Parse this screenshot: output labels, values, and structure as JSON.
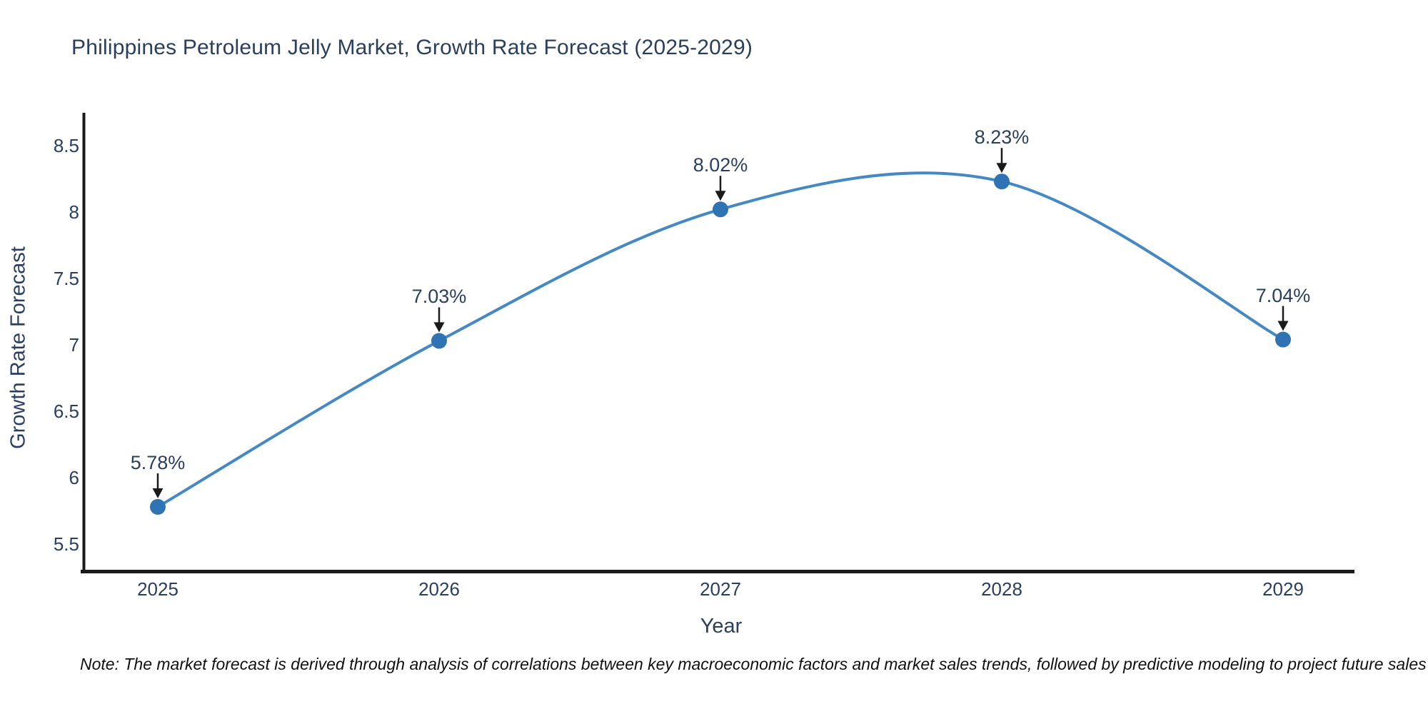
{
  "title": "Philippines Petroleum Jelly Market, Growth Rate Forecast (2025-2029)",
  "note": "Note: The market forecast is derived through analysis of correlations between key macroeconomic factors and market sales trends, followed by predictive modeling to project future sales",
  "chart_data": {
    "type": "line",
    "title": "Philippines Petroleum Jelly Market, Growth Rate Forecast (2025-2029)",
    "x": [
      2025,
      2026,
      2027,
      2028,
      2029
    ],
    "values": [
      5.78,
      7.03,
      8.02,
      8.23,
      7.04
    ],
    "point_labels": [
      "5.78%",
      "7.03%",
      "8.02%",
      "8.23%",
      "7.04%"
    ],
    "xlabel": "Year",
    "ylabel": "Growth Rate Forecast",
    "x_ticks": [
      "2025",
      "2026",
      "2027",
      "2028",
      "2029"
    ],
    "y_ticks": [
      "8.5",
      "8",
      "7.5",
      "7",
      "6.5",
      "6",
      "5.5"
    ],
    "y_tick_values": [
      8.5,
      8.0,
      7.5,
      7.0,
      6.5,
      6.0,
      5.5
    ],
    "ylim": [
      5.3,
      8.75
    ],
    "grid": false,
    "legend": false,
    "line_shape": "spline",
    "annotation_arrows": true,
    "colors": {
      "line": "#4488c4",
      "marker": "#2e74b5",
      "axis": "#1a1a1a",
      "arrow": "#1a1a1a",
      "text": "#2a3f5f",
      "note_text": "#111111"
    }
  }
}
